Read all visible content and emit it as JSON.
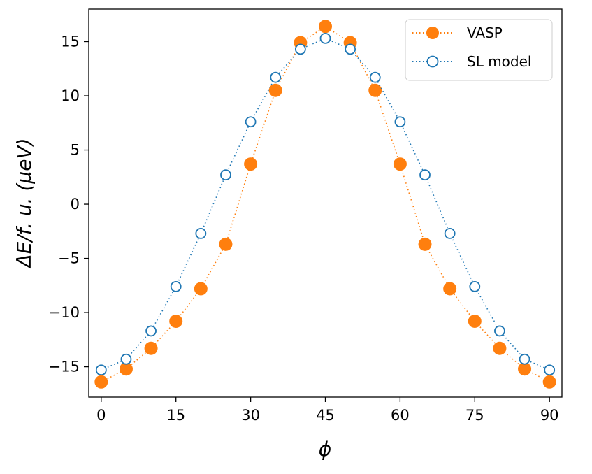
{
  "chart_data": {
    "type": "line",
    "title": "",
    "xlabel": "ϕ",
    "ylabel": "ΔE/f. u. (μeV)",
    "x": [
      0,
      5,
      10,
      15,
      20,
      25,
      30,
      35,
      40,
      45,
      50,
      55,
      60,
      65,
      70,
      75,
      80,
      85,
      90
    ],
    "xlim": [
      -2.5,
      92.5
    ],
    "ylim": [
      -17.8,
      18.0
    ],
    "xticks": [
      0,
      15,
      30,
      45,
      60,
      75,
      90
    ],
    "yticks": [
      -15,
      -10,
      -5,
      0,
      5,
      10,
      15
    ],
    "ytick_labels": [
      "−15",
      "−10",
      "−5",
      "0",
      "5",
      "10",
      "15"
    ],
    "grid": false,
    "legend_position": "top-right",
    "series": [
      {
        "name": "VASP",
        "color": "#ff7f0e",
        "marker": "filled-circle",
        "linestyle": "dotted",
        "values": [
          -16.4,
          -15.2,
          -13.3,
          -10.8,
          -7.8,
          -3.7,
          3.7,
          10.5,
          14.9,
          16.4,
          14.9,
          10.5,
          3.7,
          -3.7,
          -7.8,
          -10.8,
          -13.3,
          -15.2,
          -16.4
        ]
      },
      {
        "name": "SL model",
        "color": "#1f77b4",
        "marker": "open-circle",
        "linestyle": "dotted",
        "values": [
          -15.3,
          -14.3,
          -11.7,
          -7.6,
          -2.7,
          2.7,
          7.6,
          11.7,
          14.3,
          15.3,
          14.3,
          11.7,
          7.6,
          2.7,
          -2.7,
          -7.6,
          -11.7,
          -14.3,
          -15.3
        ]
      }
    ]
  }
}
